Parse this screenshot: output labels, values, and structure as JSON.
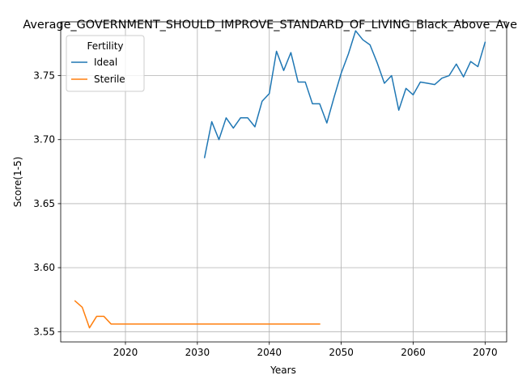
{
  "chart_data": {
    "type": "line",
    "title": "Average_GOVERNMENT_SHOULD_IMPROVE_STANDARD_OF_LIVING_Black_Above_Average",
    "xlabel": "Years",
    "ylabel": "Score(1-5)",
    "xlim": [
      2011,
      2073
    ],
    "ylim": [
      3.542,
      3.792
    ],
    "x_ticks": [
      2020,
      2030,
      2040,
      2050,
      2060,
      2070
    ],
    "y_ticks": [
      3.55,
      3.6,
      3.65,
      3.7,
      3.75
    ],
    "x_tick_labels": [
      "2020",
      "2030",
      "2040",
      "2050",
      "2060",
      "2070"
    ],
    "y_tick_labels": [
      "3.55",
      "3.60",
      "3.65",
      "3.70",
      "3.75"
    ],
    "grid": true,
    "legend": {
      "title": "Fertility",
      "placement": "upper left"
    },
    "series": [
      {
        "name": "Ideal",
        "color": "#1f77b4",
        "x": [
          2031,
          2032,
          2033,
          2034,
          2035,
          2036,
          2037,
          2038,
          2039,
          2040,
          2041,
          2042,
          2043,
          2044,
          2045,
          2046,
          2047,
          2048,
          2049,
          2050,
          2051,
          2052,
          2053,
          2054,
          2055,
          2056,
          2057,
          2058,
          2059,
          2060,
          2061,
          2062,
          2063,
          2064,
          2065,
          2066,
          2067,
          2068,
          2069,
          2070
        ],
        "y": [
          3.686,
          3.714,
          3.7,
          3.717,
          3.709,
          3.717,
          3.717,
          3.71,
          3.73,
          3.736,
          3.769,
          3.754,
          3.768,
          3.745,
          3.745,
          3.728,
          3.728,
          3.713,
          3.733,
          3.752,
          3.767,
          3.785,
          3.778,
          3.774,
          3.76,
          3.744,
          3.75,
          3.723,
          3.74,
          3.735,
          3.745,
          3.744,
          3.743,
          3.748,
          3.75,
          3.759,
          3.749,
          3.761,
          3.757,
          3.776
        ]
      },
      {
        "name": "Sterile",
        "color": "#ff7f0e",
        "x": [
          2013,
          2014,
          2015,
          2016,
          2017,
          2018,
          2019,
          2020,
          2021,
          2022,
          2023,
          2024,
          2025,
          2026,
          2027,
          2028,
          2029,
          2030,
          2031,
          2032,
          2033,
          2034,
          2035,
          2036,
          2037,
          2038,
          2039,
          2040,
          2041,
          2042,
          2043,
          2044,
          2045,
          2046,
          2047
        ],
        "y": [
          3.574,
          3.569,
          3.553,
          3.562,
          3.562,
          3.556,
          3.556,
          3.556,
          3.556,
          3.556,
          3.556,
          3.556,
          3.556,
          3.556,
          3.556,
          3.556,
          3.556,
          3.556,
          3.556,
          3.556,
          3.556,
          3.556,
          3.556,
          3.556,
          3.556,
          3.556,
          3.556,
          3.556,
          3.556,
          3.556,
          3.556,
          3.556,
          3.556,
          3.556,
          3.556
        ]
      }
    ]
  }
}
